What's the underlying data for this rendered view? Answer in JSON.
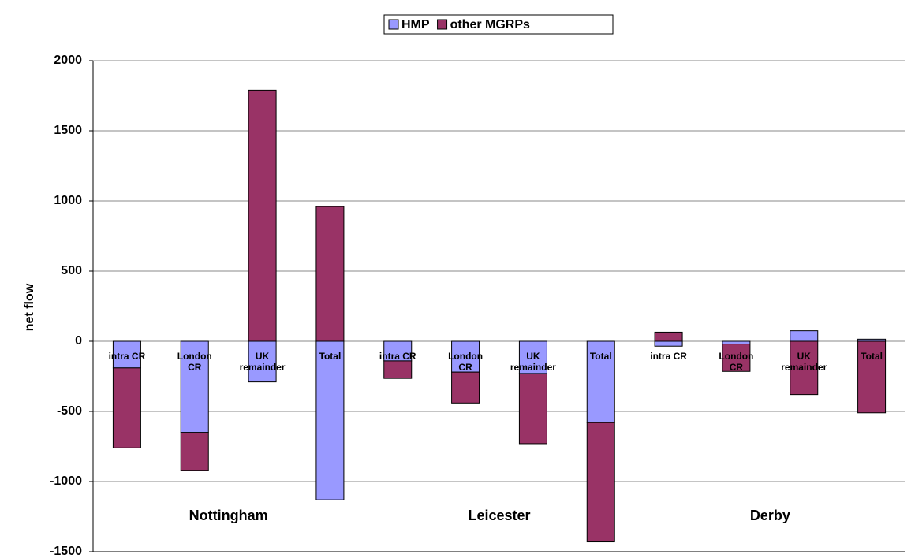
{
  "chart_data": {
    "type": "stacked_bar",
    "y_label": "net flow",
    "categories": [
      "intra CR",
      "London CR",
      "UK remainder",
      "Total",
      "intra CR",
      "London CR",
      "UK remainder",
      "Total",
      "intra CR",
      "London CR",
      "UK remainder",
      "Total"
    ],
    "groups": [
      "Nottingham",
      "Leicester",
      "Derby"
    ],
    "series": [
      {
        "name": "HMP",
        "color": "#9999ff",
        "values": [
          -190,
          -650,
          -290,
          -1130,
          -140,
          -220,
          -230,
          -580,
          -35,
          -20,
          75,
          15
        ]
      },
      {
        "name": "other MGRPs",
        "color": "#993366",
        "values": [
          -570,
          -270,
          1790,
          960,
          -125,
          -220,
          -500,
          -850,
          65,
          -195,
          -380,
          -510
        ]
      }
    ],
    "ylim": [
      -1500,
      2000
    ],
    "yticks": [
      -1500,
      -1000,
      -500,
      0,
      500,
      1000,
      1500,
      2000
    ],
    "grid": true,
    "legend": "top"
  }
}
